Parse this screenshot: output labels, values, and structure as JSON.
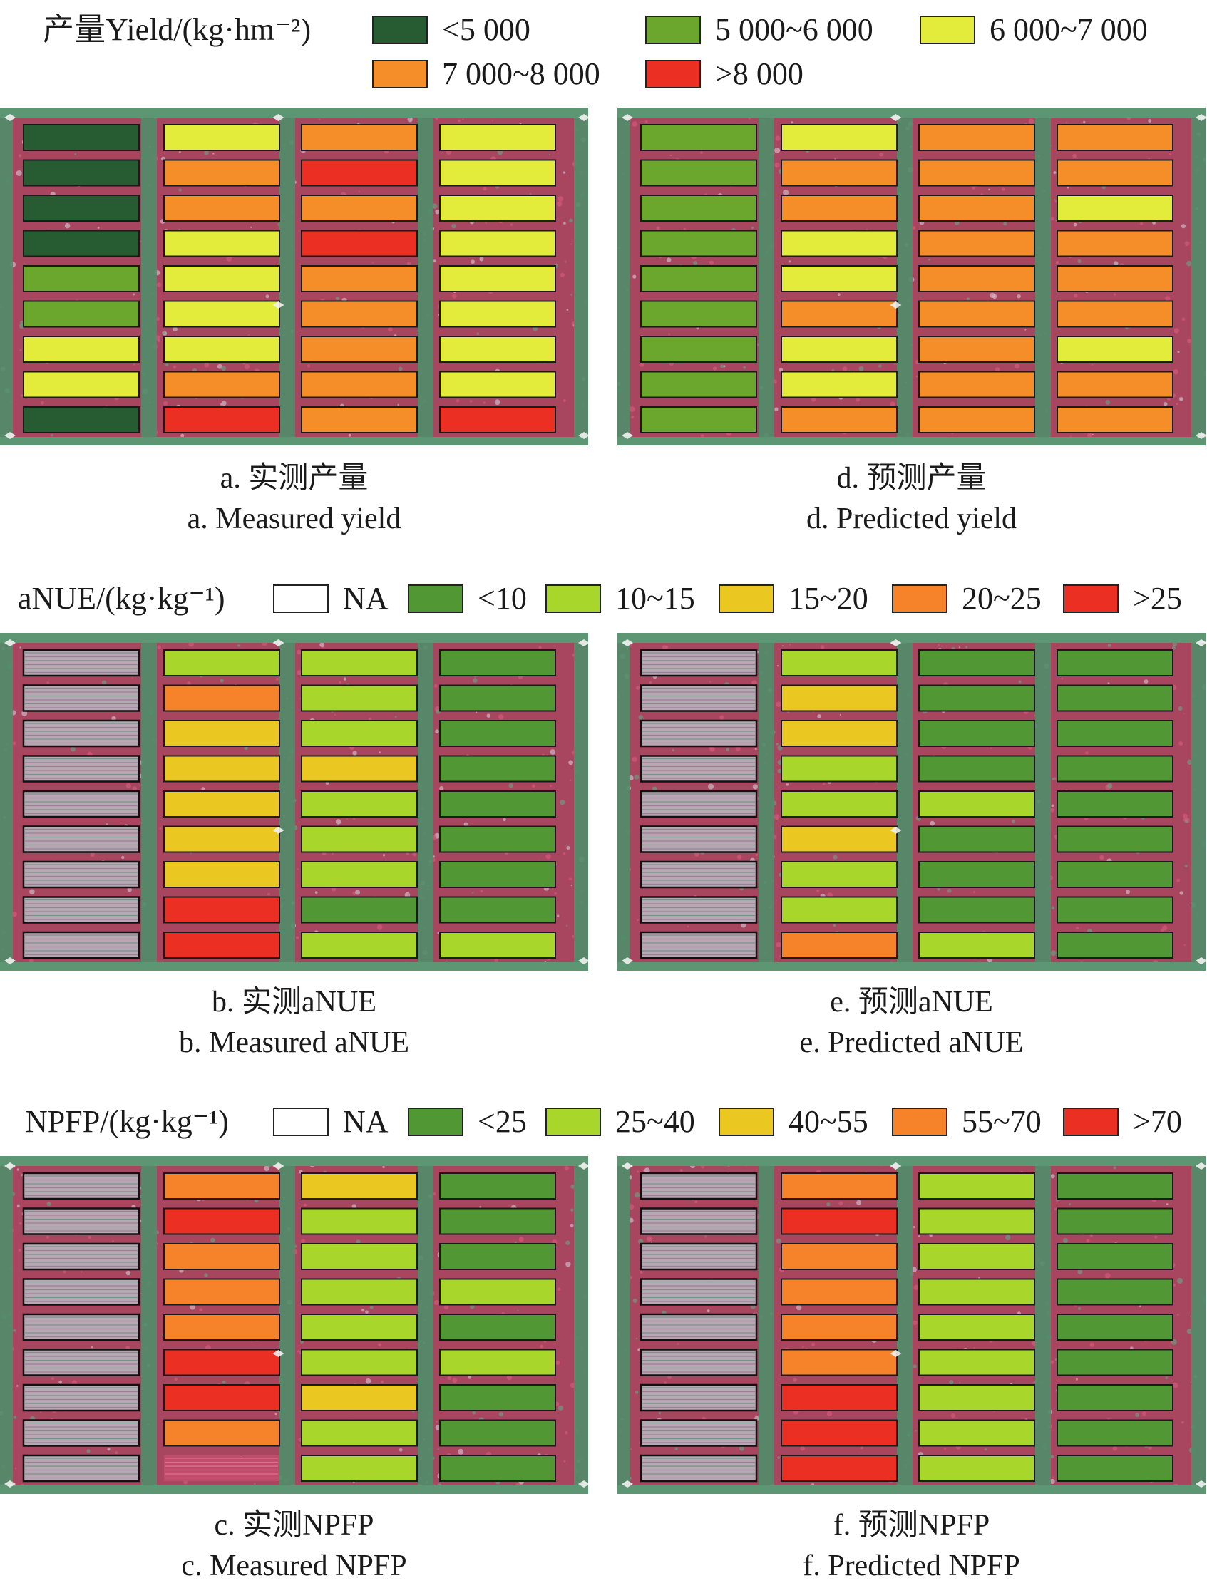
{
  "colors": {
    "yield": {
      "c1": "#275b32",
      "c2": "#6aa72c",
      "c3": "#e3ec3a",
      "c4": "#f58e28",
      "c5": "#eb2f23"
    },
    "nue": {
      "na": "none",
      "c1": "#519733",
      "c2": "#a8d62b",
      "c3": "#ebc722",
      "c4": "#f6822a",
      "c5": "#eb2f23"
    },
    "field": {
      "red": "#b83a5a",
      "green": "#4a8a62",
      "light": "#cfc7d0"
    }
  },
  "sections": [
    {
      "legend_title": "产量Yield/(kg·hm⁻²)",
      "legend": [
        {
          "label": "<5 000",
          "key": "c1"
        },
        {
          "label": "5 000~6 000",
          "key": "c2"
        },
        {
          "label": "6 000~7 000",
          "key": "c3"
        },
        {
          "label": "7 000~8 000",
          "key": "c4"
        },
        {
          "label": ">8 000",
          "key": "c5"
        }
      ],
      "panels": [
        {
          "caption_cn": "a. 实测产量",
          "caption_en": "a. Measured yield",
          "grid": [
            [
              "c1",
              "c3",
              "c4",
              "c3"
            ],
            [
              "c1",
              "c4",
              "c5",
              "c3"
            ],
            [
              "c1",
              "c4",
              "c4",
              "c3"
            ],
            [
              "c1",
              "c3",
              "c5",
              "c3"
            ],
            [
              "c2",
              "c3",
              "c4",
              "c3"
            ],
            [
              "c2",
              "c3",
              "c4",
              "c3"
            ],
            [
              "c3",
              "c3",
              "c4",
              "c3"
            ],
            [
              "c3",
              "c4",
              "c4",
              "c3"
            ],
            [
              "c1",
              "c5",
              "c4",
              "c5"
            ]
          ]
        },
        {
          "caption_cn": "d. 预测产量",
          "caption_en": "d. Predicted yield",
          "grid": [
            [
              "c2",
              "c3",
              "c4",
              "c4"
            ],
            [
              "c2",
              "c4",
              "c4",
              "c4"
            ],
            [
              "c2",
              "c4",
              "c4",
              "c3"
            ],
            [
              "c2",
              "c3",
              "c4",
              "c4"
            ],
            [
              "c2",
              "c3",
              "c4",
              "c4"
            ],
            [
              "c2",
              "c4",
              "c4",
              "c4"
            ],
            [
              "c2",
              "c3",
              "c4",
              "c3"
            ],
            [
              "c2",
              "c3",
              "c4",
              "c4"
            ],
            [
              "c2",
              "c4",
              "c4",
              "c4"
            ]
          ]
        }
      ]
    },
    {
      "legend_title": "aNUE/(kg·kg⁻¹)",
      "legend": [
        {
          "label": "NA",
          "key": "na"
        },
        {
          "label": "<10",
          "key": "c1"
        },
        {
          "label": "10~15",
          "key": "c2"
        },
        {
          "label": "15~20",
          "key": "c3"
        },
        {
          "label": "20~25",
          "key": "c4"
        },
        {
          "label": ">25",
          "key": "c5"
        }
      ],
      "panels": [
        {
          "caption_cn": "b. 实测aNUE",
          "caption_en": "b. Measured aNUE",
          "grid": [
            [
              "na",
              "c2",
              "c2",
              "c1"
            ],
            [
              "na",
              "c4",
              "c2",
              "c1"
            ],
            [
              "na",
              "c3",
              "c2",
              "c1"
            ],
            [
              "na",
              "c3",
              "c3",
              "c1"
            ],
            [
              "na",
              "c3",
              "c2",
              "c1"
            ],
            [
              "na",
              "c3",
              "c2",
              "c1"
            ],
            [
              "na",
              "c3",
              "c2",
              "c1"
            ],
            [
              "na",
              "c5",
              "c1",
              "c1"
            ],
            [
              "na",
              "c5",
              "c2",
              "c2"
            ]
          ]
        },
        {
          "caption_cn": "e. 预测aNUE",
          "caption_en": "e. Predicted aNUE",
          "grid": [
            [
              "na",
              "c2",
              "c1",
              "c1"
            ],
            [
              "na",
              "c3",
              "c1",
              "c1"
            ],
            [
              "na",
              "c3",
              "c1",
              "c1"
            ],
            [
              "na",
              "c2",
              "c1",
              "c1"
            ],
            [
              "na",
              "c2",
              "c2",
              "c1"
            ],
            [
              "na",
              "c3",
              "c1",
              "c1"
            ],
            [
              "na",
              "c2",
              "c1",
              "c1"
            ],
            [
              "na",
              "c2",
              "c1",
              "c1"
            ],
            [
              "na",
              "c4",
              "c2",
              "c1"
            ]
          ]
        }
      ]
    },
    {
      "legend_title": "NPFP/(kg·kg⁻¹)",
      "legend": [
        {
          "label": "NA",
          "key": "na"
        },
        {
          "label": "<25",
          "key": "c1"
        },
        {
          "label": "25~40",
          "key": "c2"
        },
        {
          "label": "40~55",
          "key": "c3"
        },
        {
          "label": "55~70",
          "key": "c4"
        },
        {
          "label": ">70",
          "key": "c5"
        }
      ],
      "panels": [
        {
          "caption_cn": "c. 实测NPFP",
          "caption_en": "c. Measured NPFP",
          "grid": [
            [
              "na",
              "c4",
              "c3",
              "c1"
            ],
            [
              "na",
              "c5",
              "c2",
              "c1"
            ],
            [
              "na",
              "c4",
              "c2",
              "c1"
            ],
            [
              "na",
              "c4",
              "c2",
              "c2"
            ],
            [
              "na",
              "c4",
              "c2",
              "c1"
            ],
            [
              "na",
              "c5",
              "c2",
              "c2"
            ],
            [
              "na",
              "c5",
              "c3",
              "c1"
            ],
            [
              "na",
              "c4",
              "c2",
              "c1"
            ],
            [
              "na",
              "none",
              "c2",
              "c1"
            ]
          ]
        },
        {
          "caption_cn": "f. 预测NPFP",
          "caption_en": "f. Predicted NPFP",
          "grid": [
            [
              "na",
              "c4",
              "c2",
              "c1"
            ],
            [
              "na",
              "c5",
              "c2",
              "c1"
            ],
            [
              "na",
              "c4",
              "c2",
              "c1"
            ],
            [
              "na",
              "c4",
              "c2",
              "c1"
            ],
            [
              "na",
              "c4",
              "c2",
              "c1"
            ],
            [
              "na",
              "c4",
              "c2",
              "c1"
            ],
            [
              "na",
              "c5",
              "c2",
              "c1"
            ],
            [
              "na",
              "c5",
              "c2",
              "c1"
            ],
            [
              "na",
              "c5",
              "c2",
              "c1"
            ]
          ]
        }
      ]
    }
  ]
}
